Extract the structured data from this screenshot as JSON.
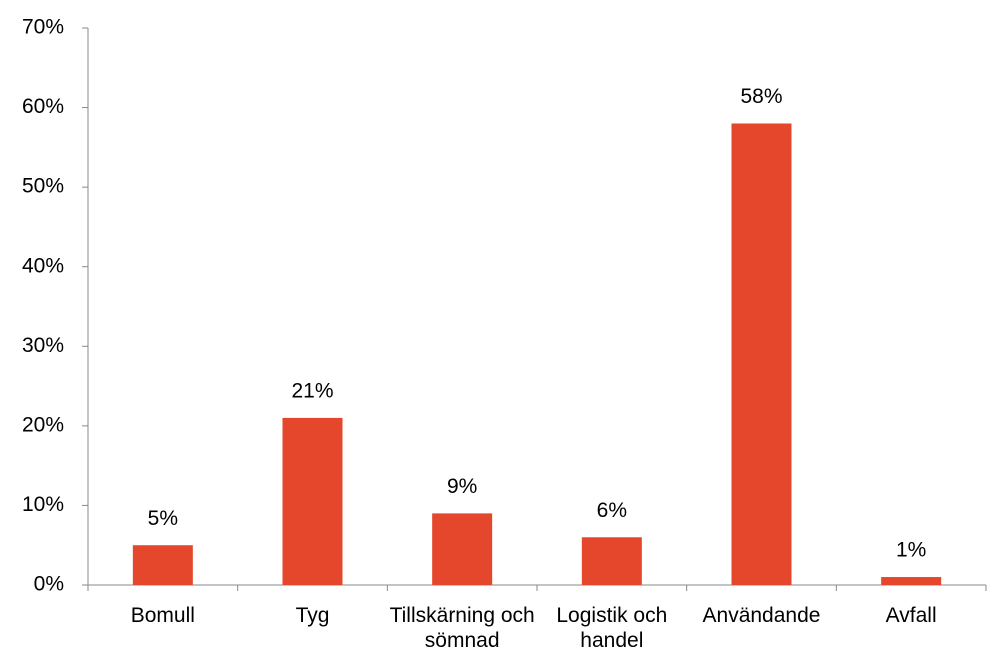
{
  "chart_data": {
    "type": "bar",
    "categories": [
      "Bomull",
      "Tyg",
      "Tillskärning och sömnad",
      "Logistik och handel",
      "Användande",
      "Avfall"
    ],
    "values": [
      5,
      21,
      9,
      6,
      58,
      1
    ],
    "value_labels": [
      "5%",
      "21%",
      "9%",
      "6%",
      "58%",
      "1%"
    ],
    "color": "#e5472c",
    "ylim": [
      0,
      70
    ],
    "yticks": [
      {
        "value": 0,
        "label": "0%"
      },
      {
        "value": 10,
        "label": "10%"
      },
      {
        "value": 20,
        "label": "20%"
      },
      {
        "value": 30,
        "label": "30%"
      },
      {
        "value": 40,
        "label": "40%"
      },
      {
        "value": 50,
        "label": "50%"
      },
      {
        "value": 60,
        "label": "60%"
      },
      {
        "value": 70,
        "label": "70%"
      }
    ],
    "grid": false
  }
}
